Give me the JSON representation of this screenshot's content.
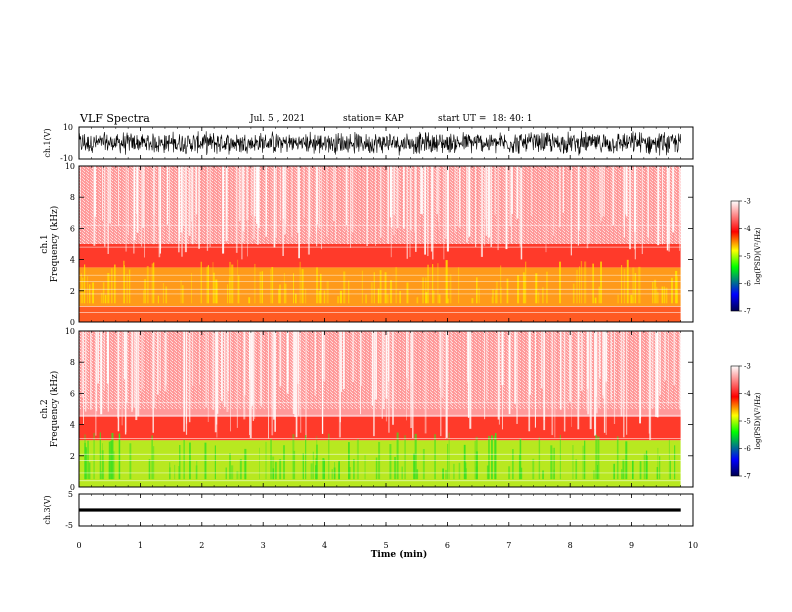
{
  "header": {
    "title": "VLF Spectra",
    "date": "Jul. 5 , 2021",
    "station": "station= KAP",
    "start": "start UT =  18: 40: 1"
  },
  "colors": {
    "spectrogram_background": "#ffffff",
    "colorbar": [
      "#ffffff",
      "#ff0000",
      "#ffff00",
      "#00ff00",
      "#0000ff",
      "#000050"
    ]
  },
  "chart_data": [
    {
      "type": "line",
      "name": "ch1-waveform",
      "ylabel": "ch.1(V)",
      "ylim": [
        -10,
        10
      ],
      "y_ticks": [
        "10",
        "-10"
      ],
      "description_range_volts": [
        -8,
        8
      ]
    },
    {
      "type": "heatmap",
      "name": "ch1-spectrogram",
      "ylabel": "ch.1\nFrequency (kHz)",
      "ylabel_lines": [
        "ch.1",
        "Frequency (kHz)"
      ],
      "ylim": [
        0,
        10
      ],
      "y_ticks": [
        "0",
        "2",
        "4",
        "6",
        "8",
        "10"
      ],
      "colorbar": {
        "label": "log(PSD)(V²/Hz)",
        "range": [
          -7,
          -3
        ],
        "ticks": [
          "-3",
          "-4",
          "-5",
          "-6",
          "-7"
        ]
      },
      "band_kHz": [
        {
          "f": [
            0,
            1
          ],
          "level": "red-orange"
        },
        {
          "f": [
            1,
            3.5
          ],
          "level": "yellow-orange"
        },
        {
          "f": [
            3.5,
            5
          ],
          "level": "red"
        },
        {
          "f": [
            5,
            10
          ],
          "level": "light-red"
        }
      ]
    },
    {
      "type": "heatmap",
      "name": "ch2-spectrogram",
      "ylabel_lines": [
        "ch.2",
        "Frequency (kHz)"
      ],
      "ylim": [
        0,
        10
      ],
      "y_ticks": [
        "0",
        "2",
        "4",
        "6",
        "8",
        "10"
      ],
      "colorbar": {
        "label": "log(PSD)(V²/Hz)",
        "range": [
          -7,
          -3
        ],
        "ticks": [
          "-3",
          "-4",
          "-5",
          "-6",
          "-7"
        ]
      },
      "band_kHz": [
        {
          "f": [
            0,
            3
          ],
          "level": "green-yellow"
        },
        {
          "f": [
            3,
            4.5
          ],
          "level": "red"
        },
        {
          "f": [
            4.5,
            10
          ],
          "level": "light-red"
        }
      ]
    },
    {
      "type": "line",
      "name": "ch3-waveform",
      "ylabel": "ch.3(V)",
      "ylim": [
        -5,
        5
      ],
      "y_ticks": [
        "5",
        "-5"
      ],
      "baseline_volts": 0
    }
  ],
  "xaxis": {
    "label": "Time (min)",
    "range": [
      0,
      10
    ],
    "ticks": [
      "0",
      "1",
      "2",
      "3",
      "4",
      "5",
      "6",
      "7",
      "8",
      "9",
      "10"
    ]
  }
}
